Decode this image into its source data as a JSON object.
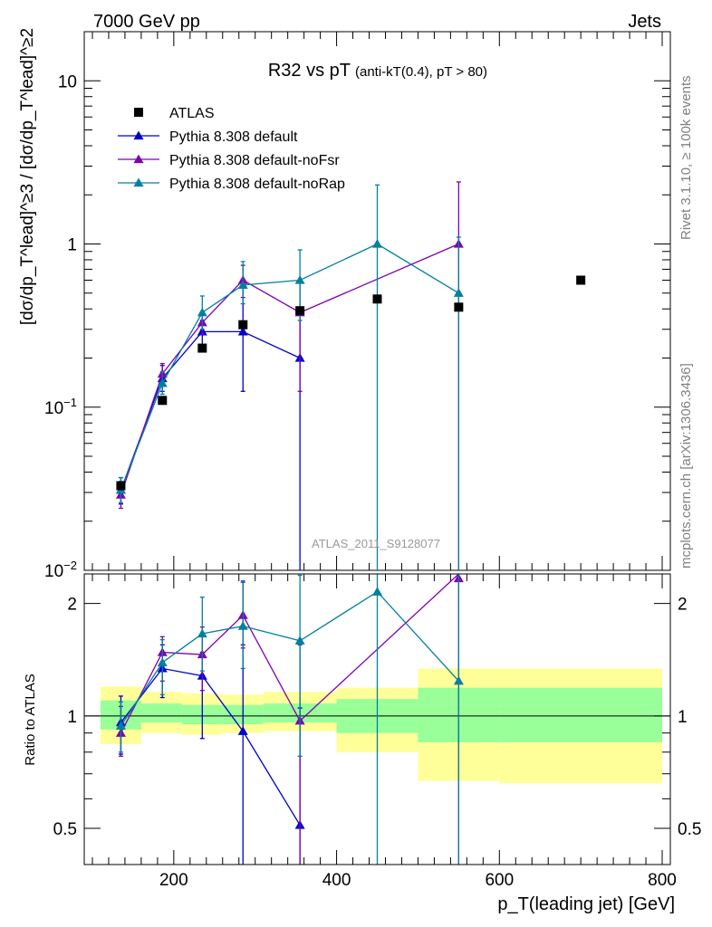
{
  "header": {
    "left": "7000 GeV pp",
    "right": "Jets"
  },
  "side_labels": {
    "rivet": "Rivet 3.1.10, ≥ 100k events",
    "mcplots": "mcplots.cern.ch [arXiv:1306.3436]"
  },
  "watermark": "ATLAS_2011_S9128077",
  "chart_data": [
    {
      "type": "scatter",
      "panel": "main",
      "title": "R32 vs pT",
      "subtitle": "(anti-kT(0.4), pT > 80)",
      "ylabel": "[dσ/dp_T^lead]^≥3 / [dσ/dp_T^lead]^≥2",
      "xlabel": "",
      "xlim": [
        90,
        810
      ],
      "ylim": [
        0.01,
        20
      ],
      "yscale": "log",
      "y_tick_labels": [
        "10^-2",
        "10^-1",
        "1",
        "10"
      ],
      "legend_position": "top-left",
      "grid": false,
      "series": [
        {
          "name": "ATLAS",
          "color": "#000000",
          "marker": "square",
          "x": [
            135,
            186,
            235,
            285,
            355,
            450,
            550,
            700
          ],
          "y": [
            0.033,
            0.11,
            0.23,
            0.32,
            0.39,
            0.46,
            0.41,
            0.6
          ]
        },
        {
          "name": "Pythia 8.308 default",
          "color": "#0000cc",
          "marker": "triangle",
          "x": [
            135,
            186,
            235,
            285,
            355
          ],
          "y": [
            0.031,
            0.15,
            0.29,
            0.29,
            0.2
          ],
          "err_low": [
            0.0255,
            0.125,
            0.24,
            0.125,
            0.0
          ],
          "err_high": [
            0.037,
            0.18,
            0.34,
            0.6,
            0.4
          ]
        },
        {
          "name": "Pythia 8.308 default-noFsr",
          "color": "#8000b0",
          "marker": "triangle",
          "x": [
            135,
            186,
            235,
            285,
            355,
            550
          ],
          "y": [
            0.029,
            0.16,
            0.33,
            0.6,
            0.38,
            1.0
          ],
          "err_low": [
            0.024,
            0.135,
            0.28,
            0.47,
            0.125,
            0.0
          ],
          "err_high": [
            0.035,
            0.185,
            0.38,
            0.74,
            0.6,
            2.4
          ]
        },
        {
          "name": "Pythia 8.308 default-noRap",
          "color": "#0080a0",
          "marker": "triangle",
          "x": [
            135,
            186,
            235,
            285,
            355,
            450,
            550
          ],
          "y": [
            0.031,
            0.14,
            0.38,
            0.56,
            0.6,
            1.0,
            0.5
          ],
          "err_low": [
            0.026,
            0.12,
            0.3,
            0.43,
            0.34,
            0.0,
            0.0
          ],
          "err_high": [
            0.037,
            0.165,
            0.48,
            0.78,
            0.92,
            2.3,
            1.1
          ]
        }
      ]
    },
    {
      "type": "line",
      "panel": "ratio",
      "ylabel": "Ratio to ATLAS",
      "xlabel": "p_T(leading jet) [GeV]",
      "xlim": [
        90,
        810
      ],
      "ylim": [
        0.4,
        2.4
      ],
      "yscale": "log",
      "x_tick_labels": [
        "200",
        "400",
        "600",
        "800"
      ],
      "y_tick_labels": [
        "0.5",
        "1",
        "2"
      ],
      "bands": {
        "edges": [
          110,
          160,
          210,
          260,
          310,
          400,
          500,
          600,
          800
        ],
        "yellow_low": [
          0.84,
          0.9,
          0.89,
          0.9,
          0.91,
          0.8,
          0.67,
          0.66
        ],
        "yellow_high": [
          1.2,
          1.16,
          1.15,
          1.14,
          1.16,
          1.19,
          1.34,
          1.34
        ],
        "green_low": [
          0.92,
          0.96,
          0.95,
          0.95,
          0.96,
          0.9,
          0.85,
          0.85
        ],
        "green_high": [
          1.1,
          1.08,
          1.07,
          1.07,
          1.08,
          1.11,
          1.19,
          1.19
        ],
        "yellow_color": "#ffff99",
        "green_color": "#99ff99"
      },
      "series": [
        {
          "name": "Pythia 8.308 default",
          "color": "#0000cc",
          "x": [
            135,
            186,
            235,
            285,
            355
          ],
          "y": [
            0.96,
            1.34,
            1.28,
            0.91,
            0.51
          ],
          "err_low": [
            0.79,
            1.12,
            0.87,
            0.33,
            0.3
          ],
          "err_high": [
            1.13,
            1.55,
            1.48,
            1.55,
            1.05
          ]
        },
        {
          "name": "Pythia 8.308 default-noFsr",
          "color": "#8000b0",
          "x": [
            135,
            186,
            235,
            285,
            355,
            550
          ],
          "y": [
            0.9,
            1.48,
            1.46,
            1.86,
            0.97,
            2.4
          ],
          "err_low": [
            0.78,
            1.24,
            1.17,
            1.52,
            0.3,
            0.3
          ],
          "err_high": [
            1.06,
            1.63,
            1.73,
            2.28,
            1.55,
            2.4
          ]
        },
        {
          "name": "Pythia 8.308 default-noRap",
          "color": "#0080a0",
          "x": [
            135,
            186,
            235,
            285,
            355,
            450,
            550
          ],
          "y": [
            0.94,
            1.39,
            1.66,
            1.74,
            1.59,
            2.15,
            1.24
          ],
          "err_low": [
            0.8,
            1.14,
            1.32,
            1.34,
            0.78,
            0.3,
            0.3
          ],
          "err_high": [
            1.09,
            1.6,
            2.08,
            2.3,
            2.38,
            2.4,
            2.4
          ]
        }
      ]
    }
  ]
}
